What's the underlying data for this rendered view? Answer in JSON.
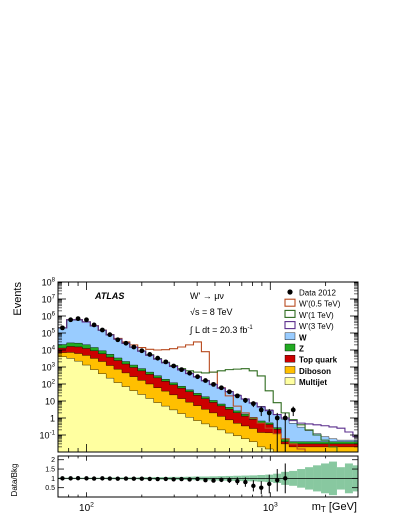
{
  "chart_data": {
    "type": "area",
    "x_scale": "log",
    "y_scale": "log",
    "xlim": [
      70,
      3000
    ],
    "ylim": [
      0.01,
      100000000
    ],
    "ratio_ylim": [
      0,
      2.2
    ],
    "experiment_label": "ATLAS",
    "channel_label": "W' → μν",
    "energy_label": "√s = 8 TeV",
    "lumi_label_prefix": "∫ L dt = 20.3 fb",
    "lumi_label_exp": "-1",
    "ylabel": "Events",
    "xlabel_main": "m",
    "xlabel_sub": "T",
    "xlabel_unit": " [GeV]",
    "ratio_ylabel": "Data/Bkg",
    "x_tick_labels": [
      {
        "x": 100,
        "base": "10",
        "exp": "2"
      },
      {
        "x": 1000,
        "base": "10",
        "exp": "3"
      }
    ],
    "y_tick_labels": [
      {
        "y": 0.1,
        "base": "10",
        "exp": "-1"
      },
      {
        "y": 1,
        "base": "1",
        "exp": ""
      },
      {
        "y": 10,
        "base": "10",
        "exp": ""
      },
      {
        "y": 100,
        "base": "10",
        "exp": "2"
      },
      {
        "y": 1000,
        "base": "10",
        "exp": "3"
      },
      {
        "y": 10000,
        "base": "10",
        "exp": "4"
      },
      {
        "y": 100000,
        "base": "10",
        "exp": "5"
      },
      {
        "y": 1000000,
        "base": "10",
        "exp": "6"
      },
      {
        "y": 10000000,
        "base": "10",
        "exp": "7"
      },
      {
        "y": 100000000,
        "base": "10",
        "exp": "8"
      }
    ],
    "ratio_tick_labels": [
      {
        "y": 0.5,
        "label": "0.5"
      },
      {
        "y": 1,
        "label": "1"
      },
      {
        "y": 1.5,
        "label": "1.5"
      },
      {
        "y": 2,
        "label": "2"
      }
    ],
    "bin_edges": [
      70,
      78,
      86,
      95,
      105,
      116,
      128,
      141,
      156,
      172,
      190,
      210,
      232,
      256,
      283,
      313,
      346,
      382,
      422,
      466,
      515,
      569,
      629,
      695,
      768,
      849,
      938,
      1037,
      1146,
      1266,
      1399,
      1546,
      1708,
      1888,
      2086,
      2305,
      2547,
      2815,
      3000
    ],
    "stack_series": [
      {
        "name": "Multijet",
        "color": "#ffffa0",
        "values": [
          4000,
          3200,
          2200,
          1300,
          700,
          400,
          220,
          120,
          70,
          40,
          24,
          14,
          8,
          5,
          3,
          1.8,
          1.1,
          0.7,
          0.45,
          0.3,
          0.2,
          0.13,
          0.09,
          0.06,
          0.04,
          0.02,
          0.015,
          0.01,
          0.01,
          0.01,
          0.01,
          0.01,
          0.01,
          0.01,
          0.01,
          0.01,
          0.01,
          0.01
        ]
      },
      {
        "name": "Diboson",
        "color": "#ffbf00",
        "values": [
          3000,
          4000,
          4000,
          3500,
          2500,
          1700,
          1000,
          620,
          380,
          230,
          140,
          86,
          52,
          33,
          20,
          12,
          7.4,
          4.6,
          2.8,
          1.7,
          1.05,
          0.65,
          0.4,
          0.28,
          0.2,
          0.12,
          0.12,
          0.11,
          0.02,
          0.01,
          0.01,
          0.01,
          0.01,
          0.01,
          0.01,
          0.01,
          0.01,
          0.01
        ]
      },
      {
        "name": "Top quark",
        "color": "#cc0000",
        "values": [
          6000,
          9000,
          9000,
          7500,
          5800,
          3900,
          2600,
          1660,
          1050,
          670,
          430,
          270,
          170,
          107,
          67,
          43,
          27,
          16.5,
          10.5,
          6.3,
          3.9,
          2.5,
          1.55,
          0.95,
          0.6,
          0.38,
          0.28,
          0.1,
          0.01,
          0.01,
          0.01,
          0.01,
          0.01,
          0.01,
          0.01,
          0.01,
          0.01,
          0.01
        ]
      },
      {
        "name": "Z",
        "color": "#22aa22",
        "values": [
          8000,
          10000,
          10000,
          8000,
          5000,
          3000,
          1800,
          1000,
          600,
          360,
          210,
          130,
          78,
          45,
          28,
          17,
          10,
          6.5,
          4,
          2.5,
          1.5,
          1,
          0.6,
          0.4,
          0.25,
          0.15,
          0.1,
          0.05,
          0.02,
          0.01,
          0.01,
          0.01,
          0.01,
          0.01,
          0.01,
          0.01,
          0.01,
          0.01
        ]
      },
      {
        "name": "W",
        "color": "#99ccff",
        "values": [
          180000,
          580000,
          580000,
          430000,
          250000,
          140000,
          75000,
          42000,
          24000,
          14000,
          8200,
          4800,
          2800,
          1700,
          1050,
          650,
          400,
          250,
          150,
          90,
          55,
          33,
          20,
          12,
          7,
          4.2,
          2.5,
          1.4,
          0.8,
          0.45,
          0.25,
          0.14,
          0.08,
          0.04,
          0.02,
          0.01,
          0.01,
          0.01
        ]
      }
    ],
    "signal_series": [
      {
        "name": "W'(0.5 TeV)",
        "color": "#b84a1e",
        "values": [
          200000,
          600000,
          600000,
          450000,
          270000,
          150000,
          80000,
          48000,
          30000,
          20000,
          14000,
          11000,
          10000,
          10500,
          12000,
          15000,
          20000,
          30000,
          8000,
          500,
          60,
          20,
          5,
          2,
          1,
          0.5,
          0.25,
          0.12,
          0.06,
          0.03,
          0.015,
          0.01,
          0.01,
          0.01,
          0.01,
          0.01,
          0.01,
          0.01
        ]
      },
      {
        "name": "W'(1 TeV)",
        "color": "#2e6b1e",
        "values": [
          200000,
          600000,
          600000,
          450000,
          260000,
          145000,
          78000,
          44000,
          25000,
          15000,
          8800,
          5200,
          3100,
          1900,
          1200,
          800,
          600,
          500,
          450,
          500,
          600,
          700,
          750,
          800,
          600,
          300,
          40,
          8,
          2,
          0.8,
          0.4,
          0.2,
          0.1,
          0.05,
          0.02,
          0.01,
          0.01,
          0.01
        ]
      },
      {
        "name": "W'(3 TeV)",
        "color": "#5a2d8c",
        "values": [
          200000,
          600000,
          600000,
          450000,
          260000,
          145000,
          77000,
          43000,
          24700,
          14600,
          8500,
          4900,
          2900,
          1750,
          1080,
          670,
          410,
          260,
          155,
          93,
          57,
          35,
          21,
          13,
          7.5,
          4.5,
          2.7,
          1.6,
          1,
          0.7,
          0.5,
          0.45,
          0.4,
          0.35,
          0.3,
          0.25,
          0.15,
          0.08
        ]
      }
    ],
    "data_points": [
      {
        "x": 74,
        "y": 200000,
        "err": 450
      },
      {
        "x": 82,
        "y": 600000,
        "err": 800
      },
      {
        "x": 90,
        "y": 700000,
        "err": 850
      },
      {
        "x": 100,
        "y": 600000,
        "err": 800
      },
      {
        "x": 110,
        "y": 300000,
        "err": 550
      },
      {
        "x": 122,
        "y": 150000,
        "err": 390
      },
      {
        "x": 134,
        "y": 80000,
        "err": 280
      },
      {
        "x": 148,
        "y": 40000,
        "err": 200
      },
      {
        "x": 164,
        "y": 25000,
        "err": 160
      },
      {
        "x": 181,
        "y": 15000,
        "err": 120
      },
      {
        "x": 200,
        "y": 9000,
        "err": 95
      },
      {
        "x": 221,
        "y": 5500,
        "err": 74
      },
      {
        "x": 244,
        "y": 3300,
        "err": 57
      },
      {
        "x": 270,
        "y": 2000,
        "err": 45
      },
      {
        "x": 298,
        "y": 1150,
        "err": 34
      },
      {
        "x": 329,
        "y": 700,
        "err": 26
      },
      {
        "x": 364,
        "y": 430,
        "err": 21
      },
      {
        "x": 402,
        "y": 270,
        "err": 16
      },
      {
        "x": 444,
        "y": 160,
        "err": 13
      },
      {
        "x": 491,
        "y": 95,
        "err": 10
      },
      {
        "x": 542,
        "y": 60,
        "err": 8
      },
      {
        "x": 599,
        "y": 35,
        "err": 6
      },
      {
        "x": 662,
        "y": 20,
        "err": 4.5
      },
      {
        "x": 732,
        "y": 11,
        "err": 3.3
      },
      {
        "x": 809,
        "y": 7,
        "err": 2.6
      },
      {
        "x": 893,
        "y": 3,
        "err": 1.7
      },
      {
        "x": 987,
        "y": 2,
        "err": 1.4
      },
      {
        "x": 1091,
        "y": 1,
        "err": 1
      },
      {
        "x": 1206,
        "y": 1,
        "err": 1
      },
      {
        "x": 1333,
        "y": 3,
        "err": 1.7
      }
    ],
    "ratio_points": [
      {
        "x": 74,
        "y": 1.0,
        "err": 0.02
      },
      {
        "x": 82,
        "y": 1.0,
        "err": 0.02
      },
      {
        "x": 90,
        "y": 1.01,
        "err": 0.02
      },
      {
        "x": 100,
        "y": 1.0,
        "err": 0.02
      },
      {
        "x": 110,
        "y": 0.99,
        "err": 0.02
      },
      {
        "x": 122,
        "y": 1.0,
        "err": 0.02
      },
      {
        "x": 134,
        "y": 0.99,
        "err": 0.02
      },
      {
        "x": 148,
        "y": 0.98,
        "err": 0.02
      },
      {
        "x": 164,
        "y": 0.99,
        "err": 0.02
      },
      {
        "x": 181,
        "y": 0.98,
        "err": 0.02
      },
      {
        "x": 200,
        "y": 0.98,
        "err": 0.02
      },
      {
        "x": 221,
        "y": 0.97,
        "err": 0.02
      },
      {
        "x": 244,
        "y": 0.96,
        "err": 0.02
      },
      {
        "x": 270,
        "y": 0.97,
        "err": 0.03
      },
      {
        "x": 298,
        "y": 0.95,
        "err": 0.03
      },
      {
        "x": 329,
        "y": 0.96,
        "err": 0.04
      },
      {
        "x": 364,
        "y": 0.94,
        "err": 0.05
      },
      {
        "x": 402,
        "y": 0.97,
        "err": 0.06
      },
      {
        "x": 444,
        "y": 0.9,
        "err": 0.08
      },
      {
        "x": 491,
        "y": 0.88,
        "err": 0.09
      },
      {
        "x": 542,
        "y": 0.92,
        "err": 0.12
      },
      {
        "x": 599,
        "y": 0.9,
        "err": 0.15
      },
      {
        "x": 662,
        "y": 0.85,
        "err": 0.2
      },
      {
        "x": 732,
        "y": 0.8,
        "err": 0.25
      },
      {
        "x": 809,
        "y": 0.6,
        "err": 0.3
      },
      {
        "x": 893,
        "y": 0.5,
        "err": 0.35
      },
      {
        "x": 987,
        "y": 0.7,
        "err": 0.5
      },
      {
        "x": 1091,
        "y": 0.9,
        "err": 0.6
      },
      {
        "x": 1206,
        "y": 1.0,
        "err": 0.8
      }
    ],
    "ratio_uncertainty": {
      "color": "#88c8a0",
      "values": [
        0.04,
        0.04,
        0.04,
        0.04,
        0.04,
        0.04,
        0.05,
        0.05,
        0.05,
        0.05,
        0.06,
        0.06,
        0.07,
        0.07,
        0.08,
        0.08,
        0.09,
        0.1,
        0.1,
        0.11,
        0.12,
        0.13,
        0.14,
        0.15,
        0.16,
        0.18,
        0.2,
        0.25,
        0.35,
        0.4,
        0.5,
        0.6,
        0.7,
        0.8,
        0.9,
        0.6,
        0.8,
        0.7
      ]
    },
    "legend": {
      "data_label": "Data 2012",
      "placement": "top-right"
    }
  }
}
